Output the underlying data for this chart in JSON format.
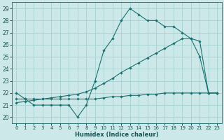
{
  "line1_x": [
    0,
    1,
    2,
    3,
    4,
    5,
    6,
    7,
    8,
    9,
    10,
    11,
    12,
    13,
    14,
    15,
    16,
    17,
    18,
    19,
    20,
    21,
    22,
    23
  ],
  "line1_y": [
    22,
    21.5,
    21,
    21,
    21,
    21,
    21,
    20,
    21,
    23,
    25.5,
    26.5,
    28,
    29,
    28.5,
    28,
    28,
    27.5,
    27.5,
    27,
    26.5,
    25,
    22,
    22
  ],
  "line2_x": [
    0,
    1,
    2,
    3,
    4,
    5,
    6,
    7,
    8,
    9,
    10,
    11,
    12,
    13,
    14,
    15,
    16,
    17,
    18,
    19,
    20,
    21,
    22,
    23
  ],
  "line2_y": [
    21.2,
    21.3,
    21.4,
    21.5,
    21.6,
    21.7,
    21.8,
    21.9,
    22.1,
    22.4,
    22.8,
    23.2,
    23.7,
    24.1,
    24.5,
    24.9,
    25.3,
    25.7,
    26.1,
    26.5,
    26.5,
    26.3,
    22,
    22
  ],
  "line3_x": [
    0,
    1,
    2,
    3,
    4,
    5,
    6,
    7,
    8,
    9,
    10,
    11,
    12,
    13,
    14,
    15,
    16,
    17,
    18,
    19,
    20,
    21,
    22,
    23
  ],
  "line3_y": [
    21.5,
    21.5,
    21.5,
    21.5,
    21.5,
    21.5,
    21.5,
    21.5,
    21.5,
    21.5,
    21.6,
    21.7,
    21.7,
    21.8,
    21.8,
    21.9,
    21.9,
    22.0,
    22.0,
    22.0,
    22.0,
    22.0,
    22.0,
    22.0
  ],
  "bg_color": "#cde8e8",
  "grid_color": "#9fcfcf",
  "line_color": "#1a7070",
  "xlabel": "Humidex (Indice chaleur)",
  "xlim": [
    -0.5,
    23.5
  ],
  "ylim": [
    19.5,
    29.5
  ],
  "xticks": [
    0,
    1,
    2,
    3,
    4,
    5,
    6,
    7,
    8,
    9,
    10,
    11,
    12,
    13,
    14,
    15,
    16,
    17,
    18,
    19,
    20,
    21,
    22,
    23
  ],
  "yticks": [
    20,
    21,
    22,
    23,
    24,
    25,
    26,
    27,
    28,
    29
  ],
  "xlabel_fontsize": 6.0,
  "tick_fontsize": 5.0,
  "lw": 0.8,
  "ms": 1.8
}
